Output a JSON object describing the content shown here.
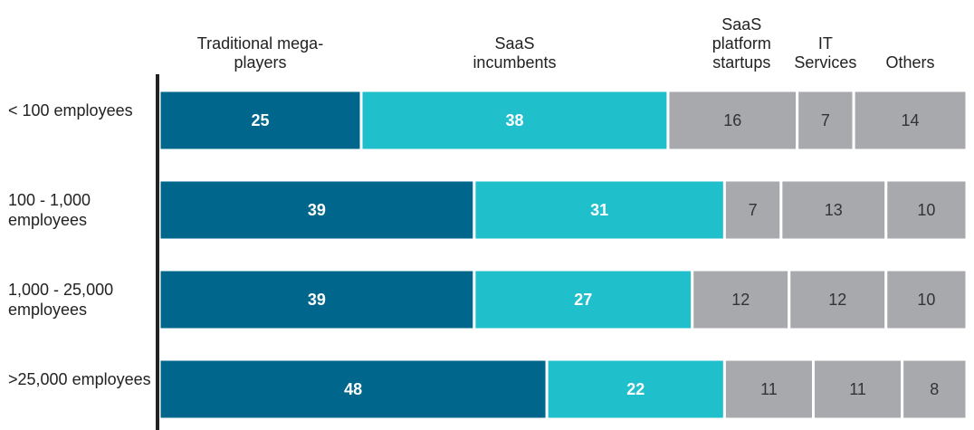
{
  "chart_data": {
    "type": "stacked-bar-horizontal",
    "categories": [
      "< 100 employees",
      "100 - 1,000 employees",
      "1,000 - 25,000 employees",
      ">25,000 employees"
    ],
    "series": [
      {
        "name": "Traditional mega-players",
        "color": "#00668c",
        "values": [
          25,
          39,
          39,
          48
        ]
      },
      {
        "name": "SaaS incumbents",
        "color": "#20bfcc",
        "values": [
          38,
          31,
          27,
          22
        ]
      },
      {
        "name": "SaaS platform startups",
        "color": "#a7a9ac",
        "values": [
          16,
          7,
          12,
          11
        ]
      },
      {
        "name": "IT Services",
        "color": "#a7a9ac",
        "values": [
          7,
          13,
          12,
          11
        ]
      },
      {
        "name": "Others",
        "color": "#a7a9ac",
        "values": [
          14,
          10,
          10,
          8
        ]
      }
    ],
    "xlim": [
      0,
      100
    ]
  }
}
